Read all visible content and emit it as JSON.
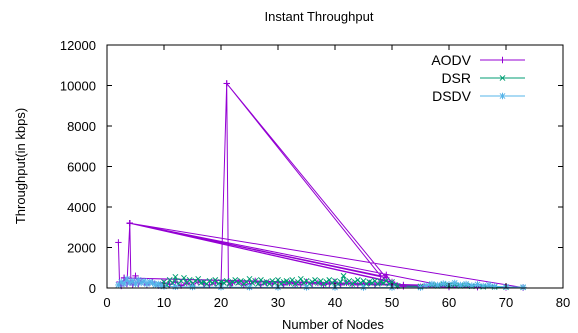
{
  "chart_data": {
    "type": "line",
    "title": "Instant Throughput",
    "xlabel": "Number of Nodes",
    "ylabel": "Throughput(in kbps)",
    "xlim": [
      0,
      80
    ],
    "ylim": [
      0,
      12000
    ],
    "xticks": [
      0,
      10,
      20,
      30,
      40,
      50,
      60,
      70,
      80
    ],
    "yticks": [
      0,
      2000,
      4000,
      6000,
      8000,
      10000,
      12000
    ],
    "legend_position": "top-right",
    "grid": false,
    "series": [
      {
        "name": "AODV",
        "color": "#9400d3",
        "marker": "plus",
        "points": [
          [
            2,
            2250
          ],
          [
            2.2,
            300
          ],
          [
            2.5,
            100
          ],
          [
            3,
            500
          ],
          [
            3.5,
            200
          ],
          [
            4,
            3200
          ],
          [
            4.2,
            300
          ],
          [
            4.5,
            150
          ],
          [
            5,
            600
          ],
          [
            5.5,
            200
          ],
          [
            6,
            350
          ],
          [
            7,
            150
          ],
          [
            8,
            300
          ],
          [
            9,
            120
          ],
          [
            10,
            250
          ],
          [
            11,
            180
          ],
          [
            12,
            300
          ],
          [
            13,
            120
          ],
          [
            14,
            250
          ],
          [
            15,
            150
          ],
          [
            16,
            300
          ],
          [
            17,
            200
          ],
          [
            18,
            150
          ],
          [
            19,
            250
          ],
          [
            20,
            200
          ],
          [
            21,
            10100
          ],
          [
            21.3,
            300
          ],
          [
            21.6,
            150
          ],
          [
            22,
            250
          ],
          [
            23,
            300
          ],
          [
            24,
            150
          ],
          [
            25,
            200
          ],
          [
            26,
            350
          ],
          [
            27,
            150
          ],
          [
            28,
            250
          ],
          [
            29,
            200
          ],
          [
            30,
            300
          ],
          [
            31,
            150
          ],
          [
            32,
            250
          ],
          [
            33,
            200
          ],
          [
            34,
            150
          ],
          [
            35,
            300
          ],
          [
            36,
            200
          ],
          [
            37,
            250
          ],
          [
            38,
            150
          ],
          [
            39,
            200
          ],
          [
            40,
            300
          ],
          [
            41,
            150
          ],
          [
            42,
            250
          ],
          [
            43,
            200
          ],
          [
            44,
            150
          ],
          [
            45,
            200
          ],
          [
            46,
            250
          ],
          [
            47,
            150
          ],
          [
            48,
            300
          ],
          [
            49,
            650
          ],
          [
            50,
            200
          ],
          [
            51,
            100
          ],
          [
            52,
            80
          ],
          [
            55,
            60
          ],
          [
            60,
            50
          ],
          [
            65,
            40
          ],
          [
            70,
            30
          ],
          [
            73,
            20
          ],
          [
            4,
            3200
          ],
          [
            49,
            500
          ],
          [
            21,
            10100
          ],
          [
            48,
            600
          ],
          [
            4,
            3200
          ],
          [
            50,
            300
          ],
          [
            4,
            3200
          ],
          [
            52,
            150
          ],
          [
            4,
            3200
          ],
          [
            60,
            60
          ],
          [
            3,
            500
          ],
          [
            73,
            30
          ]
        ]
      },
      {
        "name": "DSR",
        "color": "#009e73",
        "marker": "x",
        "points": [
          [
            9,
            200
          ],
          [
            10,
            300
          ],
          [
            10.5,
            150
          ],
          [
            11,
            400
          ],
          [
            11.5,
            250
          ],
          [
            12,
            550
          ],
          [
            12.5,
            200
          ],
          [
            13,
            350
          ],
          [
            13.5,
            500
          ],
          [
            14,
            250
          ],
          [
            14.5,
            400
          ],
          [
            15,
            200
          ],
          [
            15.5,
            350
          ],
          [
            16,
            450
          ],
          [
            16.5,
            250
          ],
          [
            17,
            300
          ],
          [
            17.5,
            200
          ],
          [
            18,
            350
          ],
          [
            18.5,
            250
          ],
          [
            19,
            400
          ],
          [
            19.5,
            200
          ],
          [
            20,
            300
          ],
          [
            20.5,
            250
          ],
          [
            21,
            350
          ],
          [
            21.5,
            200
          ],
          [
            22,
            300
          ],
          [
            22.5,
            400
          ],
          [
            23,
            250
          ],
          [
            23.5,
            350
          ],
          [
            24,
            200
          ],
          [
            24.5,
            300
          ],
          [
            25,
            450
          ],
          [
            25.5,
            250
          ],
          [
            26,
            350
          ],
          [
            26.5,
            200
          ],
          [
            27,
            400
          ],
          [
            27.5,
            250
          ],
          [
            28,
            300
          ],
          [
            28.5,
            200
          ],
          [
            29,
            350
          ],
          [
            29.5,
            250
          ],
          [
            30,
            400
          ],
          [
            30.5,
            200
          ],
          [
            31,
            300
          ],
          [
            31.5,
            350
          ],
          [
            32,
            250
          ],
          [
            32.5,
            400
          ],
          [
            33,
            200
          ],
          [
            33.5,
            300
          ],
          [
            34,
            450
          ],
          [
            34.5,
            250
          ],
          [
            35,
            350
          ],
          [
            35.5,
            200
          ],
          [
            36,
            300
          ],
          [
            36.5,
            400
          ],
          [
            37,
            250
          ],
          [
            37.5,
            350
          ],
          [
            38,
            200
          ],
          [
            38.5,
            300
          ],
          [
            39,
            400
          ],
          [
            39.5,
            250
          ],
          [
            40,
            350
          ],
          [
            40.5,
            200
          ],
          [
            41,
            300
          ],
          [
            41.5,
            600
          ],
          [
            42,
            250
          ],
          [
            42.5,
            350
          ],
          [
            43,
            200
          ],
          [
            43.5,
            300
          ],
          [
            44,
            400
          ],
          [
            44.5,
            250
          ],
          [
            45,
            350
          ],
          [
            45.5,
            200
          ],
          [
            46,
            300
          ],
          [
            46.5,
            250
          ],
          [
            47,
            350
          ],
          [
            47.5,
            200
          ],
          [
            48,
            300
          ],
          [
            48.5,
            250
          ],
          [
            49,
            350
          ],
          [
            49.5,
            200
          ],
          [
            50,
            300
          ],
          [
            50.5,
            150
          ],
          [
            51,
            100
          ],
          [
            55,
            80
          ],
          [
            57,
            150
          ],
          [
            58,
            100
          ],
          [
            59,
            180
          ],
          [
            60,
            120
          ],
          [
            61,
            150
          ],
          [
            62,
            100
          ],
          [
            63,
            130
          ],
          [
            64,
            80
          ],
          [
            66,
            60
          ],
          [
            68,
            50
          ],
          [
            70,
            40
          ],
          [
            73,
            30
          ]
        ]
      },
      {
        "name": "DSDV",
        "color": "#56b4e9",
        "marker": "star",
        "points": [
          [
            2,
            150
          ],
          [
            2.5,
            300
          ],
          [
            3,
            200
          ],
          [
            3.5,
            450
          ],
          [
            4,
            250
          ],
          [
            4.5,
            350
          ],
          [
            5,
            200
          ],
          [
            5.5,
            400
          ],
          [
            6,
            250
          ],
          [
            6.5,
            350
          ],
          [
            7,
            200
          ],
          [
            7.5,
            300
          ],
          [
            8,
            250
          ],
          [
            8.5,
            150
          ],
          [
            9,
            200
          ],
          [
            9.5,
            100
          ],
          [
            10,
            80
          ],
          [
            12,
            60
          ],
          [
            15,
            50
          ],
          [
            20,
            40
          ],
          [
            25,
            35
          ],
          [
            30,
            30
          ],
          [
            35,
            30
          ],
          [
            40,
            25
          ],
          [
            45,
            25
          ],
          [
            50,
            20
          ],
          [
            55,
            20
          ],
          [
            56,
            120
          ],
          [
            57,
            200
          ],
          [
            58,
            150
          ],
          [
            59,
            220
          ],
          [
            60,
            180
          ],
          [
            61,
            250
          ],
          [
            62,
            150
          ],
          [
            63,
            200
          ],
          [
            64,
            120
          ],
          [
            65,
            180
          ],
          [
            66,
            100
          ],
          [
            67,
            150
          ],
          [
            68,
            80
          ],
          [
            70,
            60
          ],
          [
            73,
            40
          ]
        ]
      }
    ]
  }
}
